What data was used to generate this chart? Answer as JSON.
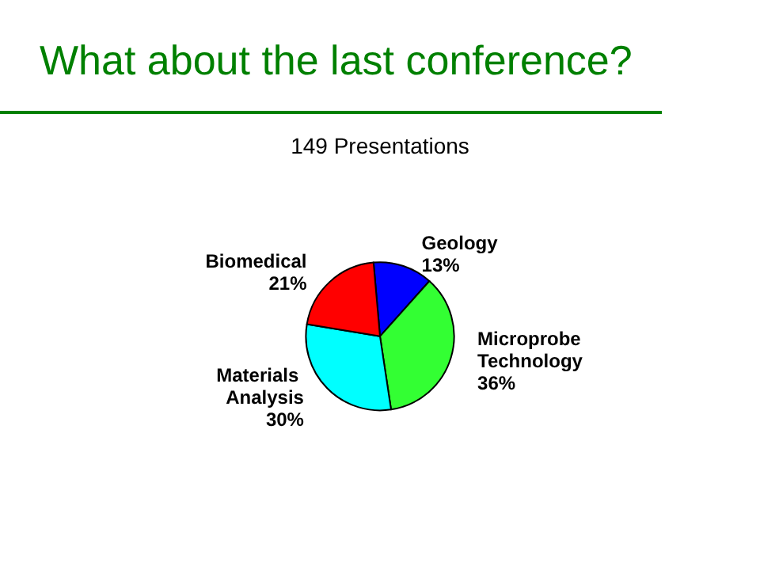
{
  "chart_data": {
    "type": "pie",
    "title": "What about the last conference?",
    "subtitle": "149 Presentations",
    "categories": [
      "Geology",
      "Microprobe Technology",
      "Materials Analysis",
      "Biomedical"
    ],
    "values": [
      13,
      36,
      30,
      21
    ],
    "colors": [
      "#0000ff",
      "#33ff33",
      "#00ffff",
      "#ff0000"
    ],
    "value_labels": [
      "13%",
      "36%",
      "30%",
      "21%"
    ],
    "legend": false
  }
}
